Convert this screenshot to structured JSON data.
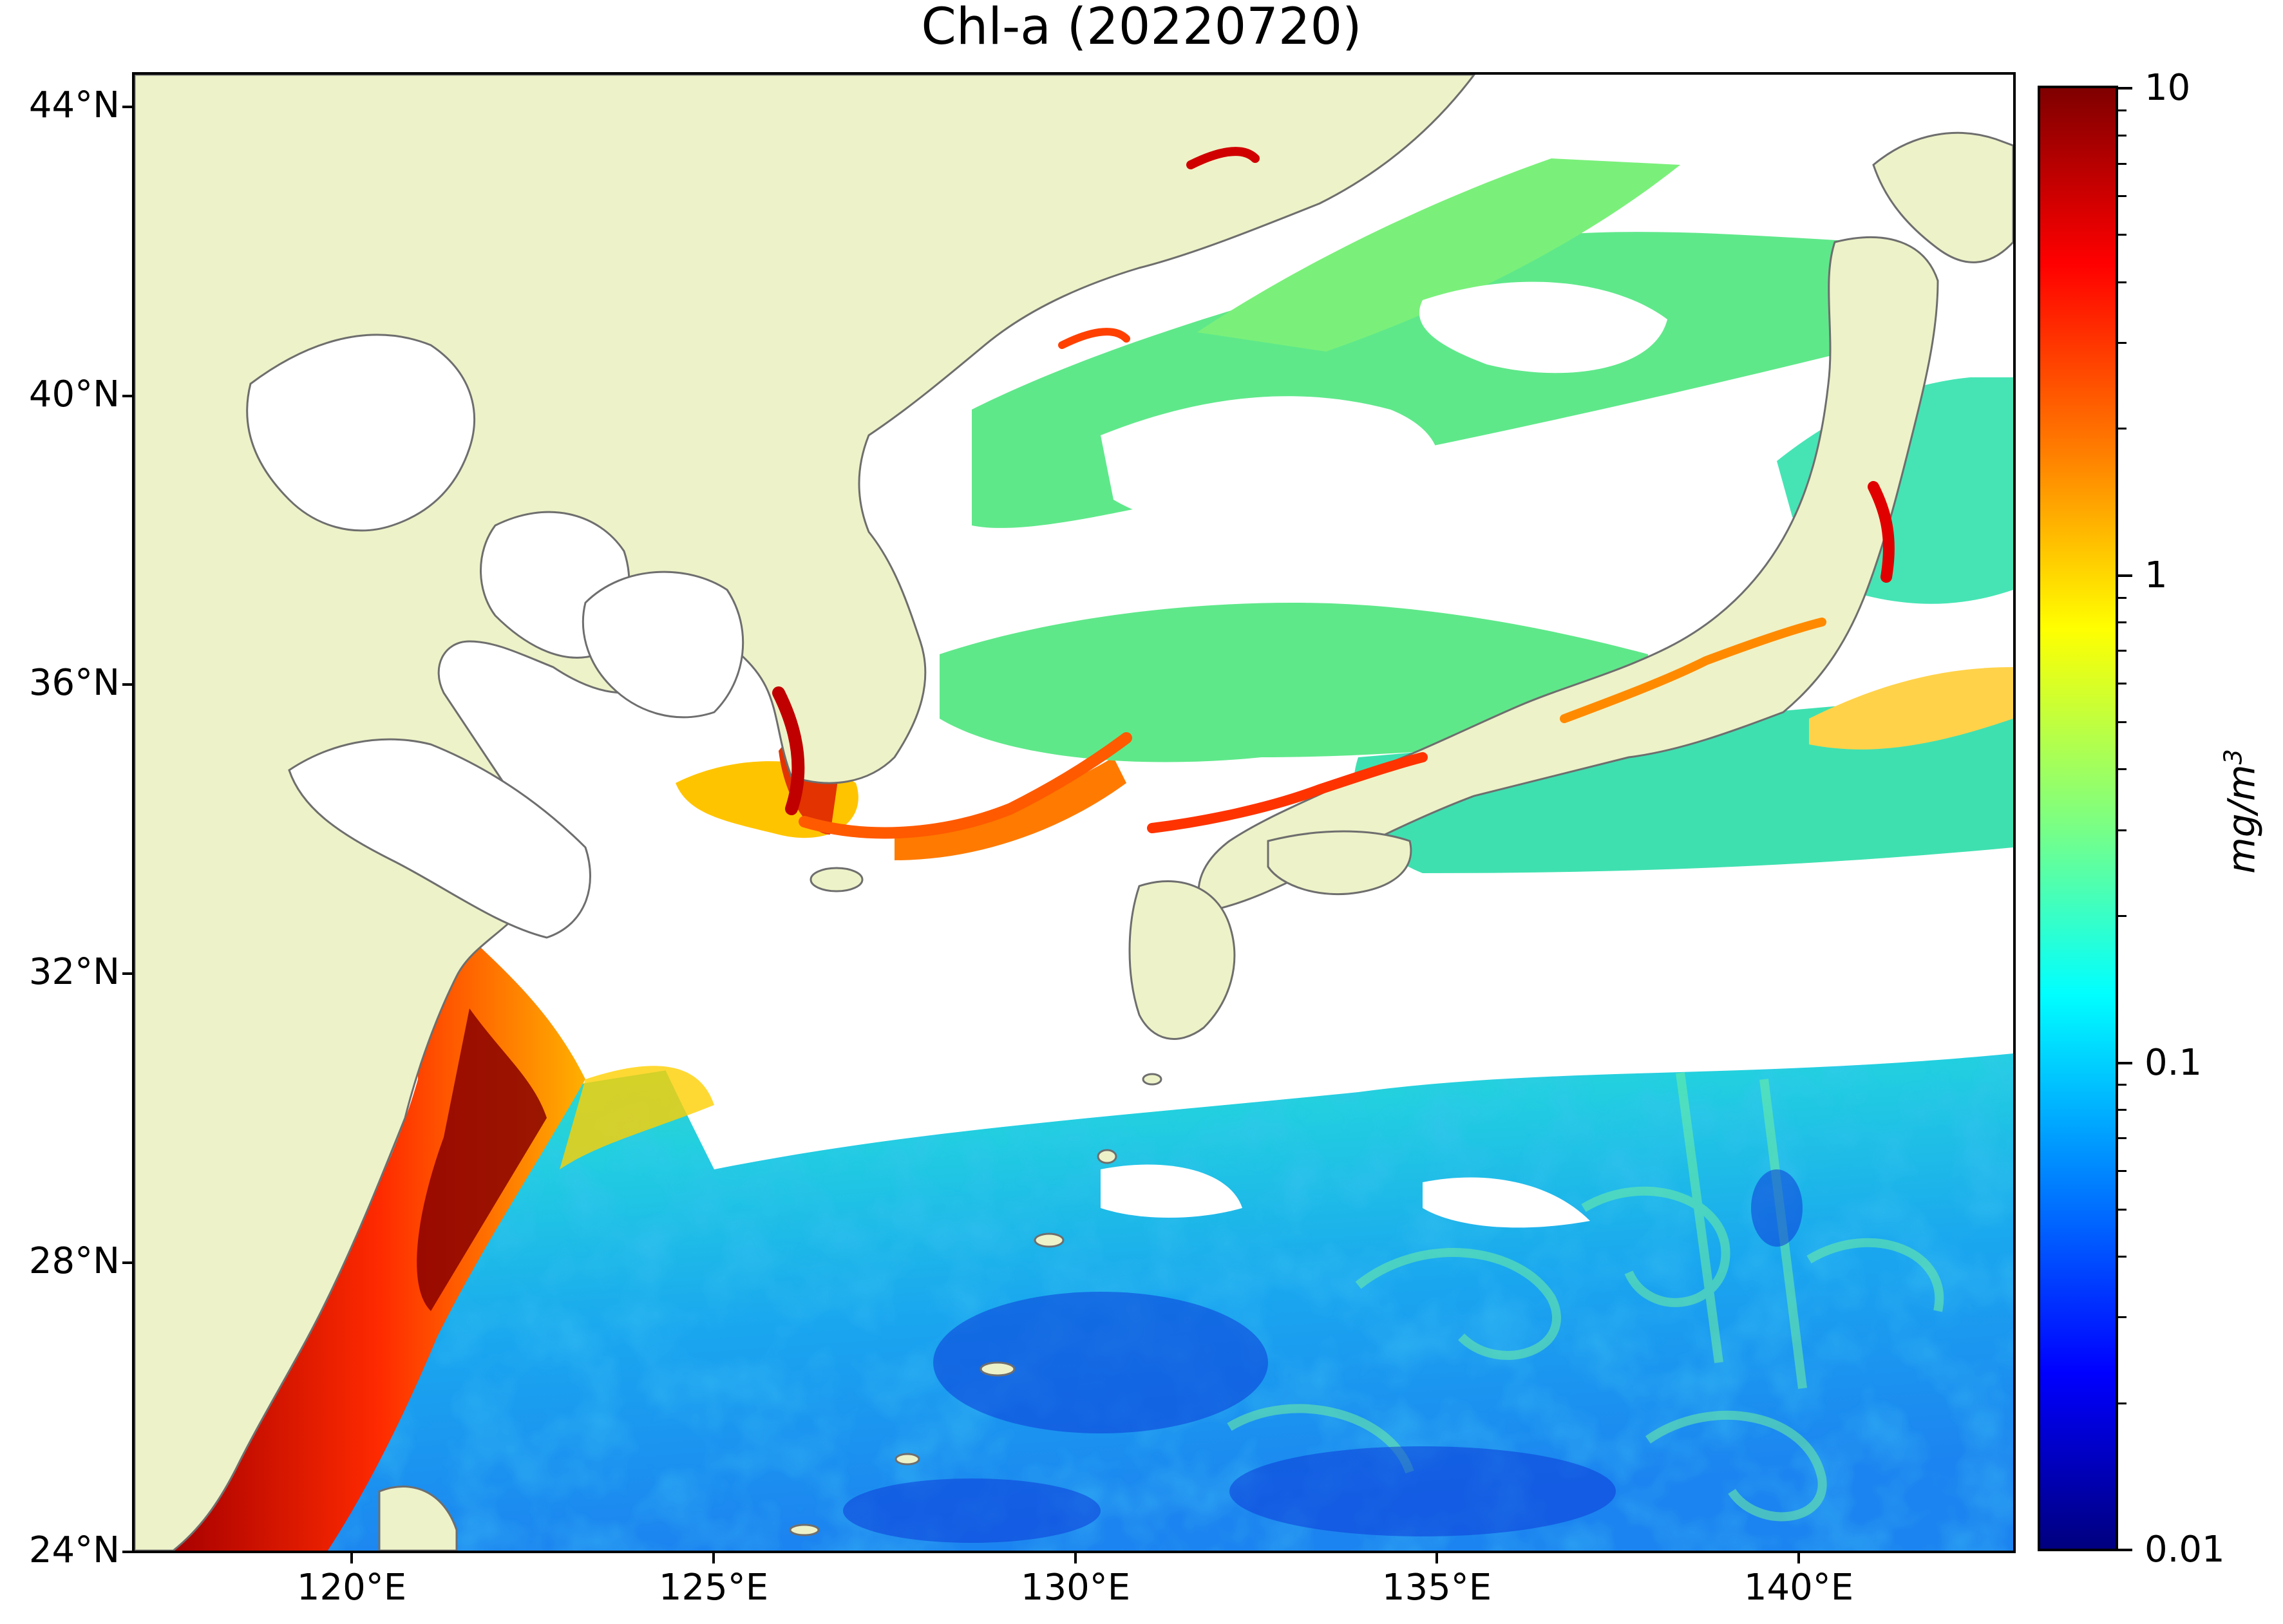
{
  "title": "Chl-a (20220720)",
  "map": {
    "projection": "equirectangular",
    "lon_range_deg": [
      116.5,
      143.0
    ],
    "lat_range_deg": [
      23.9,
      44.6
    ],
    "land_color": "#eef2c8",
    "coastline_color": "#6e6e6e",
    "no_data_color": "#ffffff",
    "lat_labels": [
      "44°N",
      "40°N",
      "36°N",
      "32°N",
      "28°N",
      "24°N"
    ],
    "lon_labels": [
      "120°E",
      "125°E",
      "130°E",
      "135°E",
      "140°E"
    ]
  },
  "colorbar": {
    "scale": "log",
    "range": [
      0.01,
      10
    ],
    "colormap": "jet",
    "tick_labels": [
      "10",
      "1",
      "0.1",
      "0.01"
    ],
    "unit_base": "mg/m",
    "unit_exp": "3"
  }
}
